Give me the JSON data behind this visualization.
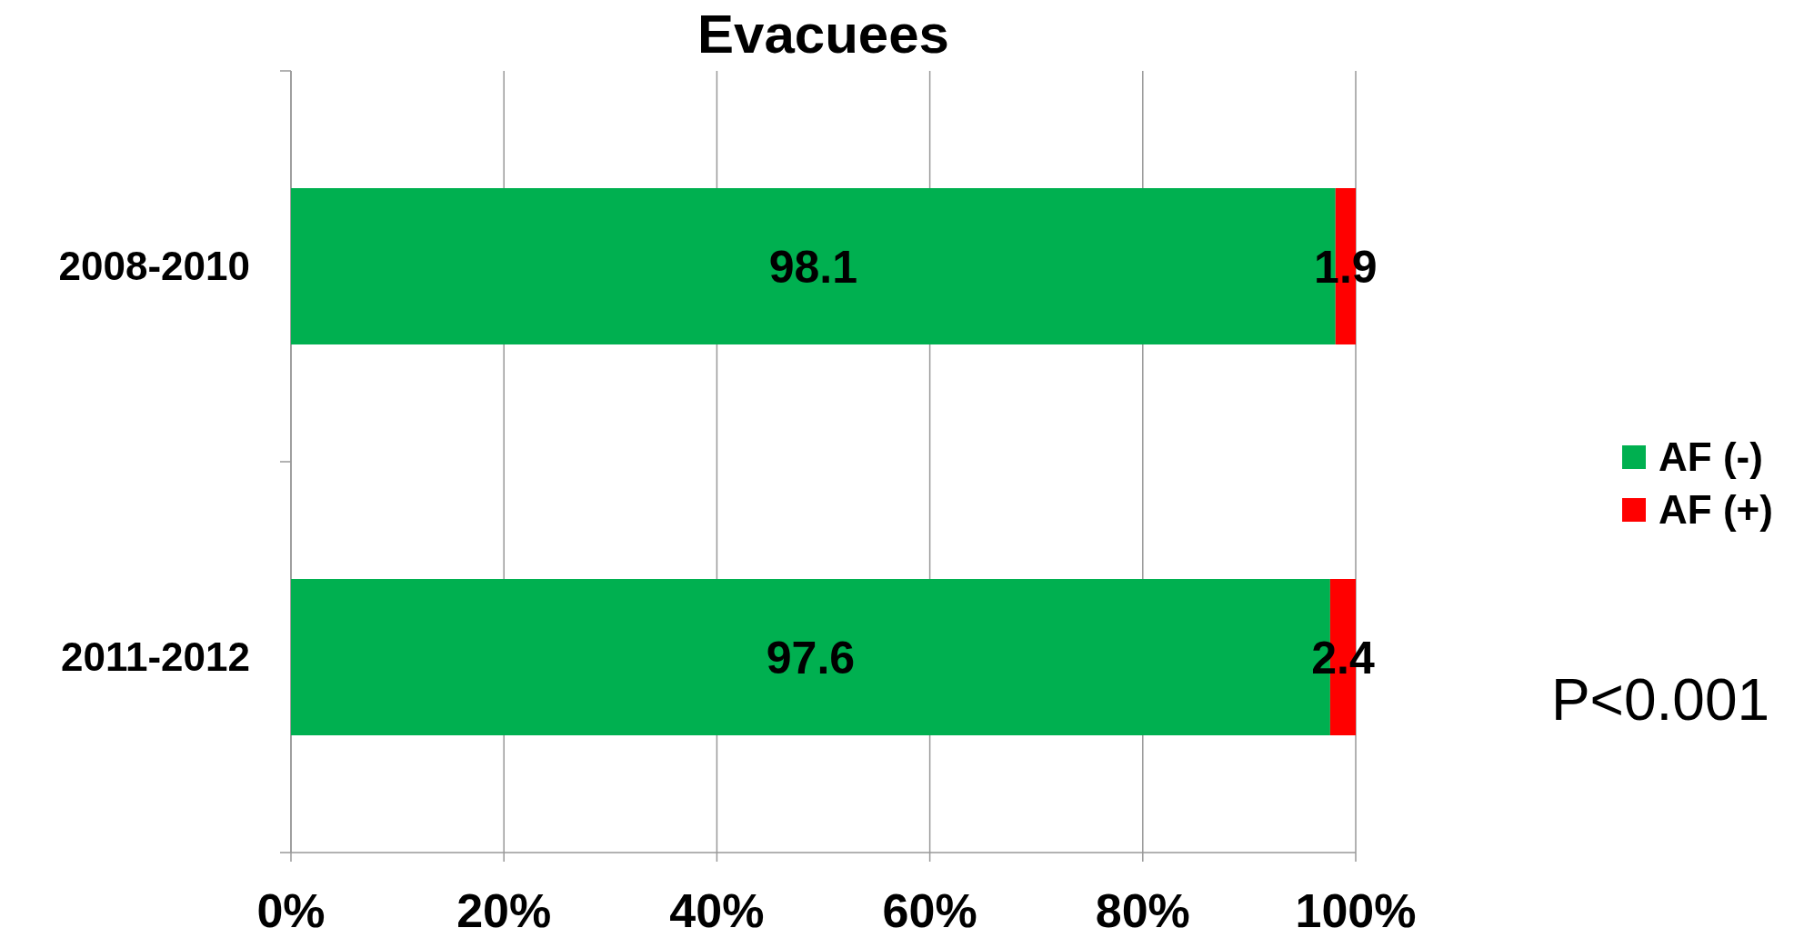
{
  "chart_data": {
    "type": "bar",
    "title": "Evacuees",
    "orientation": "horizontal",
    "stacked": true,
    "categories": [
      "2008-2010",
      "2011-2012"
    ],
    "series": [
      {
        "name": "AF (-)",
        "color": "#00b050",
        "values": [
          98.1,
          97.6
        ]
      },
      {
        "name": "AF (+)",
        "color": "#ff0000",
        "values": [
          1.9,
          2.4
        ]
      }
    ],
    "xlim": [
      0,
      100
    ],
    "xticks": [
      {
        "value": 0,
        "label": "0%"
      },
      {
        "value": 20,
        "label": "20%"
      },
      {
        "value": 40,
        "label": "40%"
      },
      {
        "value": 60,
        "label": "60%"
      },
      {
        "value": 80,
        "label": "80%"
      },
      {
        "value": 100,
        "label": "100%"
      }
    ],
    "grid": "x",
    "legend": "right",
    "data_labels": true,
    "annotations": [
      "P<0.001"
    ]
  }
}
